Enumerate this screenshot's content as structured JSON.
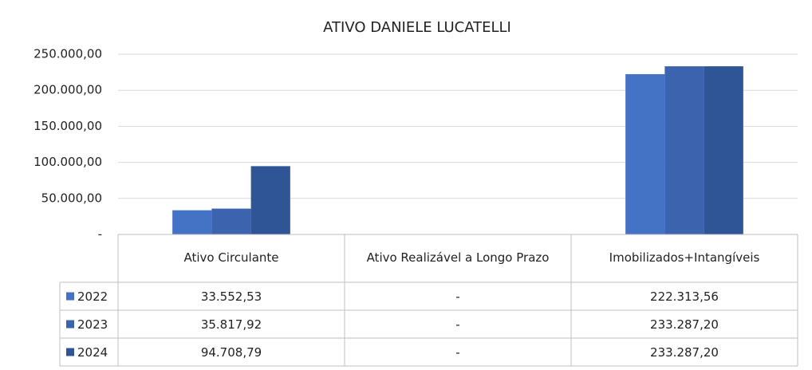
{
  "chart_data": {
    "type": "bar",
    "title": "ATIVO DANIELE LUCATELLI",
    "categories": [
      "Ativo Circulante",
      "Ativo Realizável a Longo Prazo",
      "Imobilizados+Intangíveis"
    ],
    "series": [
      {
        "name": "2022",
        "color": "#4472c4",
        "values": [
          33552.53,
          0,
          222313.56
        ],
        "value_labels": [
          "33.552,53",
          "-",
          "222.313,56"
        ]
      },
      {
        "name": "2023",
        "color": "#3b63ae",
        "values": [
          35817.92,
          0,
          233287.2
        ],
        "value_labels": [
          "35.817,92",
          "-",
          "233.287,20"
        ]
      },
      {
        "name": "2024",
        "color": "#2f5597",
        "values": [
          94708.79,
          0,
          233287.2
        ],
        "value_labels": [
          "94.708,79",
          "-",
          "233.287,20"
        ]
      }
    ],
    "ylim": [
      0,
      250000
    ],
    "yticks": [
      {
        "value": 0,
        "label": "-"
      },
      {
        "value": 50000,
        "label": "50.000,00"
      },
      {
        "value": 100000,
        "label": "100.000,00"
      },
      {
        "value": 150000,
        "label": "150.000,00"
      },
      {
        "value": 200000,
        "label": "200.000,00"
      },
      {
        "value": 250000,
        "label": "250.000,00"
      }
    ],
    "grid": true
  }
}
